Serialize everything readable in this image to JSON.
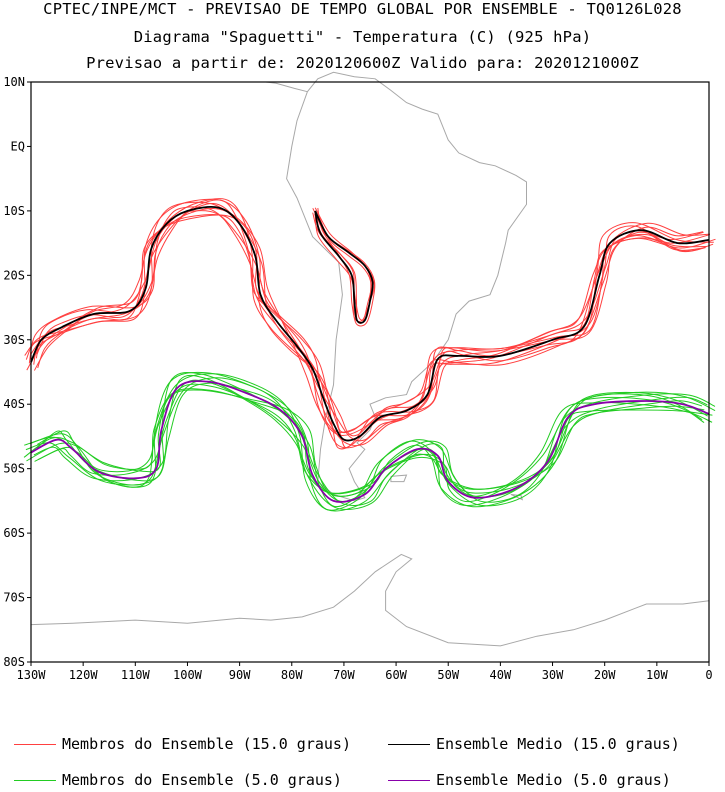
{
  "titles": {
    "line1": "CPTEC/INPE/MCT - PREVISAO DE TEMPO GLOBAL POR ENSEMBLE - TQ0126L028",
    "line2": "Diagrama \"Spaguetti\" - Temperatura (C) (925 hPa)",
    "line3": "Previsao a partir de: 2020120600Z  Valido para: 2020121000Z"
  },
  "axes": {
    "lat_ticks": [
      {
        "label": "10N",
        "value": 10
      },
      {
        "label": "EQ",
        "value": 0
      },
      {
        "label": "10S",
        "value": -10
      },
      {
        "label": "20S",
        "value": -20
      },
      {
        "label": "30S",
        "value": -30
      },
      {
        "label": "40S",
        "value": -40
      },
      {
        "label": "50S",
        "value": -50
      },
      {
        "label": "60S",
        "value": -60
      },
      {
        "label": "70S",
        "value": -70
      },
      {
        "label": "80S",
        "value": -80
      }
    ],
    "lon_ticks": [
      {
        "label": "130W",
        "value": -130
      },
      {
        "label": "120W",
        "value": -120
      },
      {
        "label": "110W",
        "value": -110
      },
      {
        "label": "100W",
        "value": -100
      },
      {
        "label": "90W",
        "value": -90
      },
      {
        "label": "80W",
        "value": -80
      },
      {
        "label": "70W",
        "value": -70
      },
      {
        "label": "60W",
        "value": -60
      },
      {
        "label": "50W",
        "value": -50
      },
      {
        "label": "40W",
        "value": -40
      },
      {
        "label": "30W",
        "value": -30
      },
      {
        "label": "20W",
        "value": -20
      },
      {
        "label": "10W",
        "value": -10
      },
      {
        "label": "0",
        "value": 0
      }
    ],
    "lon_range": [
      -130,
      0
    ],
    "lat_range": [
      -80,
      10
    ]
  },
  "colors": {
    "member15": "#ff4040",
    "mean15": "#000000",
    "member5": "#22cc22",
    "mean5": "#8800aa",
    "coast": "#a8a8a8"
  },
  "legend": [
    {
      "label": "Membros do Ensemble (15.0 graus)",
      "color": "#ff4040"
    },
    {
      "label": "Ensemble Medio (15.0 graus)",
      "color": "#000000"
    },
    {
      "label": "Membros do Ensemble (5.0 graus)",
      "color": "#22cc22"
    },
    {
      "label": "Ensemble Medio (5.0 graus)",
      "color": "#8800aa"
    }
  ],
  "contours": {
    "mean15_main": [
      [
        -130,
        -33.5
      ],
      [
        -128,
        -30
      ],
      [
        -124,
        -28
      ],
      [
        -118,
        -26
      ],
      [
        -111,
        -25.5
      ],
      [
        -108,
        -22
      ],
      [
        -107,
        -16
      ],
      [
        -104,
        -12
      ],
      [
        -100,
        -10
      ],
      [
        -94,
        -9.5
      ],
      [
        -90,
        -12
      ],
      [
        -87,
        -17
      ],
      [
        -86,
        -23
      ],
      [
        -83,
        -27
      ],
      [
        -79,
        -31
      ],
      [
        -76,
        -34.5
      ],
      [
        -74,
        -39
      ],
      [
        -72,
        -43
      ],
      [
        -70,
        -45.5
      ],
      [
        -67,
        -45
      ],
      [
        -63,
        -42
      ],
      [
        -58,
        -41
      ],
      [
        -54,
        -38.5
      ],
      [
        -52,
        -33
      ],
      [
        -48,
        -32.5
      ],
      [
        -40,
        -32.5
      ],
      [
        -30,
        -30
      ],
      [
        -24,
        -28
      ],
      [
        -21,
        -20
      ],
      [
        -19,
        -15
      ],
      [
        -13,
        -13
      ],
      [
        -6,
        -15
      ],
      [
        0,
        -14.5
      ]
    ],
    "mean15_andes": [
      [
        -75.5,
        -10
      ],
      [
        -73,
        -14
      ],
      [
        -69,
        -16.5
      ],
      [
        -66,
        -18.5
      ],
      [
        -64.5,
        -21
      ],
      [
        -65,
        -24
      ],
      [
        -66,
        -27
      ],
      [
        -67.5,
        -27
      ],
      [
        -68,
        -24
      ],
      [
        -68.5,
        -20
      ],
      [
        -71,
        -17
      ],
      [
        -74.5,
        -13.5
      ],
      [
        -75.5,
        -10
      ]
    ],
    "mean5_main": [
      [
        -130,
        -47.5
      ],
      [
        -125,
        -45.5
      ],
      [
        -122,
        -47
      ],
      [
        -117,
        -50.5
      ],
      [
        -110,
        -51.5
      ],
      [
        -106,
        -50
      ],
      [
        -105,
        -44
      ],
      [
        -102,
        -37.5
      ],
      [
        -96,
        -36.5
      ],
      [
        -88,
        -38.5
      ],
      [
        -82,
        -41
      ],
      [
        -78,
        -45
      ],
      [
        -76,
        -51
      ],
      [
        -72,
        -55
      ],
      [
        -66,
        -54
      ],
      [
        -62,
        -50
      ],
      [
        -56,
        -47
      ],
      [
        -52,
        -48
      ],
      [
        -50,
        -52
      ],
      [
        -45,
        -54.5
      ],
      [
        -37,
        -53
      ],
      [
        -31,
        -49
      ],
      [
        -27,
        -42
      ],
      [
        -22,
        -40
      ],
      [
        -12,
        -39.5
      ],
      [
        -5,
        -40
      ],
      [
        0,
        -41.5
      ]
    ]
  },
  "coastlines": {
    "south_america": [
      [
        -77,
        8.5
      ],
      [
        -79,
        4
      ],
      [
        -80,
        0
      ],
      [
        -81,
        -5
      ],
      [
        -79,
        -8
      ],
      [
        -77,
        -12
      ],
      [
        -76,
        -14
      ],
      [
        -71,
        -18
      ],
      [
        -70.3,
        -23
      ],
      [
        -71.5,
        -30
      ],
      [
        -72,
        -37
      ],
      [
        -73.5,
        -42
      ],
      [
        -74.5,
        -47
      ],
      [
        -75,
        -52
      ],
      [
        -72,
        -54
      ],
      [
        -68,
        -55
      ],
      [
        -66,
        -54.5
      ],
      [
        -68,
        -52
      ],
      [
        -69,
        -50
      ],
      [
        -66,
        -47
      ],
      [
        -67.5,
        -46
      ],
      [
        -65,
        -44
      ],
      [
        -64,
        -42
      ],
      [
        -65,
        -40
      ],
      [
        -62,
        -39
      ],
      [
        -58,
        -38.5
      ],
      [
        -57,
        -36.5
      ],
      [
        -55,
        -35
      ],
      [
        -53,
        -33.5
      ],
      [
        -50,
        -30
      ],
      [
        -48.5,
        -26
      ],
      [
        -46,
        -24
      ],
      [
        -42,
        -23
      ],
      [
        -40.5,
        -20
      ],
      [
        -39,
        -15
      ],
      [
        -38.5,
        -13
      ],
      [
        -35,
        -9
      ],
      [
        -35,
        -5.5
      ],
      [
        -37,
        -4.5
      ],
      [
        -41,
        -3
      ],
      [
        -44,
        -2.5
      ],
      [
        -48,
        -1
      ],
      [
        -50,
        1
      ],
      [
        -52,
        5
      ],
      [
        -55,
        5.8
      ],
      [
        -58,
        6.8
      ],
      [
        -61,
        8.7
      ],
      [
        -64,
        10.5
      ],
      [
        -68,
        10.8
      ],
      [
        -72,
        11.5
      ],
      [
        -75,
        10.5
      ],
      [
        -77,
        8.5
      ]
    ],
    "central_america": [
      [
        -77,
        8.5
      ],
      [
        -79.5,
        9
      ],
      [
        -83,
        9.8
      ],
      [
        -85,
        10
      ]
    ],
    "antarctica": [
      [
        -130,
        -74.2
      ],
      [
        -122,
        -74
      ],
      [
        -110,
        -73.5
      ],
      [
        -100,
        -74
      ],
      [
        -90,
        -73.2
      ],
      [
        -84,
        -73.5
      ],
      [
        -78,
        -73
      ],
      [
        -72,
        -71.5
      ],
      [
        -68,
        -69
      ],
      [
        -64,
        -66
      ],
      [
        -59,
        -63.3
      ],
      [
        -57,
        -64
      ],
      [
        -60,
        -66
      ],
      [
        -62,
        -69
      ],
      [
        -62,
        -72
      ],
      [
        -58,
        -74.5
      ],
      [
        -50,
        -77
      ],
      [
        -40,
        -77.5
      ],
      [
        -33,
        -76
      ],
      [
        -26,
        -75
      ],
      [
        -20,
        -73.5
      ],
      [
        -12,
        -71
      ],
      [
        -5,
        -71
      ],
      [
        0,
        -70.5
      ]
    ],
    "falklands": [
      [
        -61,
        -51.2
      ],
      [
        -58,
        -51
      ],
      [
        -58.5,
        -52
      ],
      [
        -61,
        -52
      ],
      [
        -61,
        -51.2
      ]
    ],
    "south_georgia": [
      [
        -38,
        -54
      ],
      [
        -36,
        -54.2
      ],
      [
        -35.8,
        -54.8
      ],
      [
        -38,
        -54
      ]
    ]
  }
}
